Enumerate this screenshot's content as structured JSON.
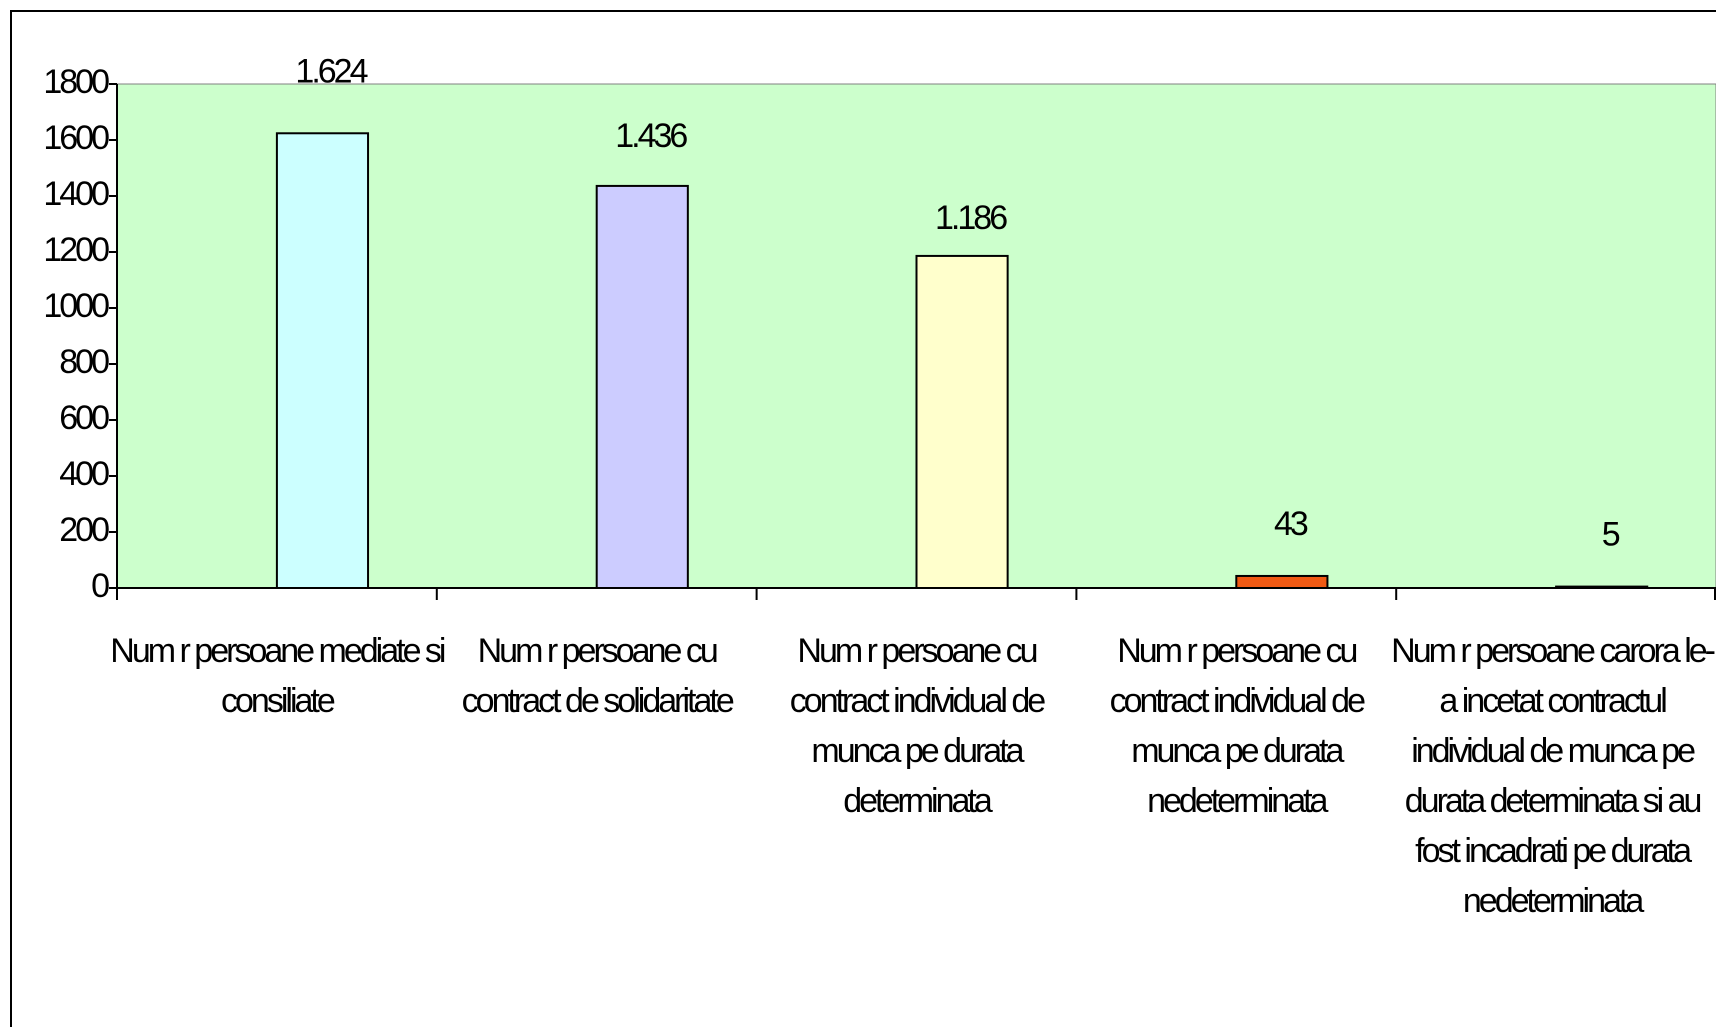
{
  "chart_data": {
    "type": "bar",
    "categories": [
      "Num r persoane mediate si consiliate",
      "Num r persoane cu contract de solidaritate",
      "Num r persoane cu contract individual de munca pe durata determinata",
      "Num r persoane cu contract individual de munca pe durata nedeterminata",
      "Num r persoane carora le-a incetat contractul individual de munca pe durata determinata si au fost incadrati pe durata nedeterminata"
    ],
    "values": [
      1624,
      1436,
      1186,
      43,
      5
    ],
    "value_labels": [
      "1.624",
      "1.436",
      "1.186",
      "43",
      "5"
    ],
    "colors": [
      "#ccffff",
      "#ccccff",
      "#ffffcc",
      "#f05a14",
      "#ffcccc"
    ],
    "plot_background": "#ccffcc",
    "ylim": [
      0,
      1800
    ],
    "yticks": [
      0,
      200,
      400,
      600,
      800,
      1000,
      1200,
      1400,
      1600,
      1800
    ]
  }
}
